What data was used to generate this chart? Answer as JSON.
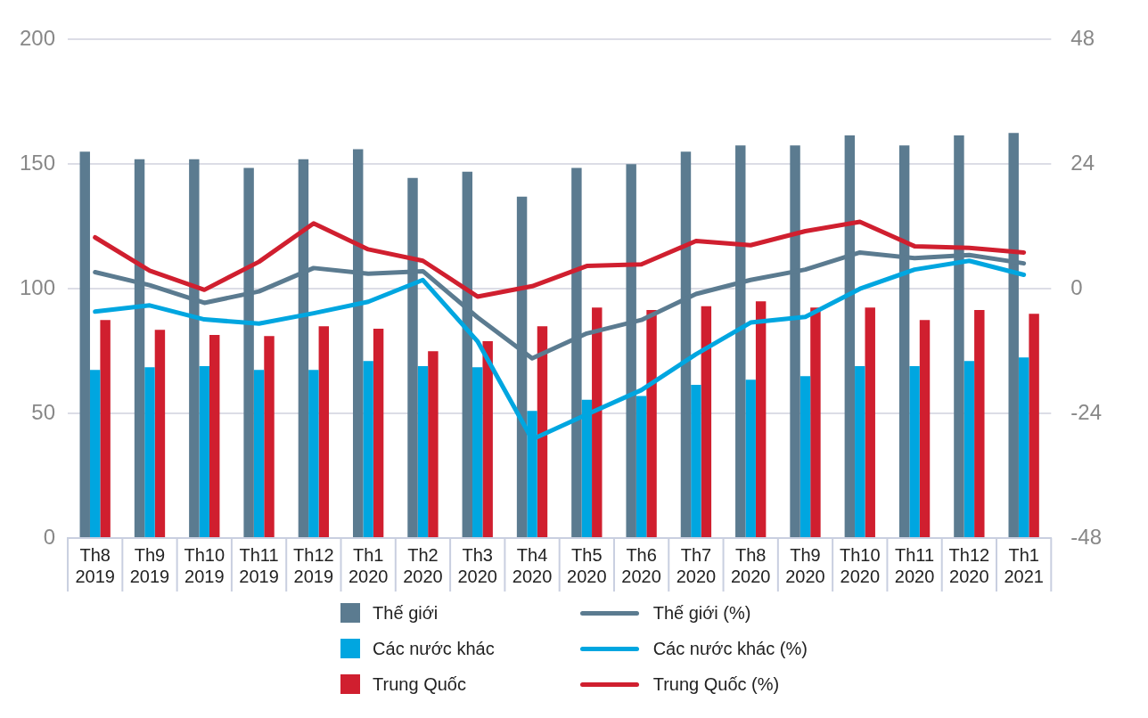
{
  "chart_data": {
    "type": "bar",
    "categories": [
      "Th8 2019",
      "Th9 2019",
      "Th10 2019",
      "Th11 2019",
      "Th12 2019",
      "Th1 2020",
      "Th2 2020",
      "Th3 2020",
      "Th4 2020",
      "Th5 2020",
      "Th6 2020",
      "Th7 2020",
      "Th8 2020",
      "Th9 2020",
      "Th10 2020",
      "Th11 2020",
      "Th12 2020",
      "Th1 2021"
    ],
    "series": [
      {
        "name": "Thế giới",
        "color": "#5b7b90",
        "values": [
          155,
          152,
          152,
          148.5,
          152,
          156,
          144.5,
          147,
          137,
          148.5,
          150,
          155,
          157.5,
          157.5,
          161.5,
          157.5,
          161.5,
          162.5
        ]
      },
      {
        "name": "Các nước khác",
        "color": "#00a6e0",
        "values": [
          67.5,
          68.5,
          69,
          67.5,
          67.5,
          71,
          69,
          68.5,
          51,
          55.5,
          57,
          61.5,
          63.5,
          65,
          69,
          69,
          71,
          72.5
        ]
      },
      {
        "name": "Trung Quốc",
        "color": "#d01f2f",
        "values": [
          87.5,
          83.5,
          81.5,
          81,
          85,
          84,
          75,
          79,
          85,
          92.5,
          91.5,
          93,
          95,
          92.5,
          92.5,
          87.5,
          91.5,
          90
        ]
      },
      {
        "name": "Thế giới (%)",
        "type": "line",
        "axis": "y2",
        "color": "#5b7b90",
        "values": [
          3.2,
          0.7,
          -2.7,
          -0.5,
          4.0,
          2.9,
          3.4,
          -5.5,
          -13.4,
          -8.6,
          -6.0,
          -1.0,
          1.7,
          3.7,
          7.0,
          5.9,
          6.5,
          4.9
        ]
      },
      {
        "name": "Các nước khác (%)",
        "type": "line",
        "axis": "y2",
        "color": "#00a6e0",
        "values": [
          -4.4,
          -3.2,
          -5.9,
          -6.7,
          -4.7,
          -2.5,
          1.7,
          -10.1,
          -29.0,
          -24.2,
          -19.5,
          -12.6,
          -6.5,
          -5.4,
          0,
          3.7,
          5.4,
          2.7
        ]
      },
      {
        "name": "Trung Quốc (%)",
        "type": "line",
        "axis": "y2",
        "color": "#d01f2f",
        "values": [
          9.9,
          3.5,
          -0.2,
          5.2,
          12.6,
          7.6,
          5.4,
          -1.5,
          0.5,
          4.4,
          4.7,
          9.2,
          8.4,
          11.1,
          12.9,
          8.2,
          7.9,
          7.0
        ]
      }
    ],
    "ylim": [
      0,
      200
    ],
    "yticks": [
      0,
      50,
      100,
      150,
      200
    ],
    "y2lim": [
      -48,
      48
    ],
    "y2ticks": [
      -48,
      -24,
      0,
      24,
      48
    ],
    "grid": "y",
    "legend": "bottom",
    "marker": "none",
    "line_style": "solid"
  }
}
